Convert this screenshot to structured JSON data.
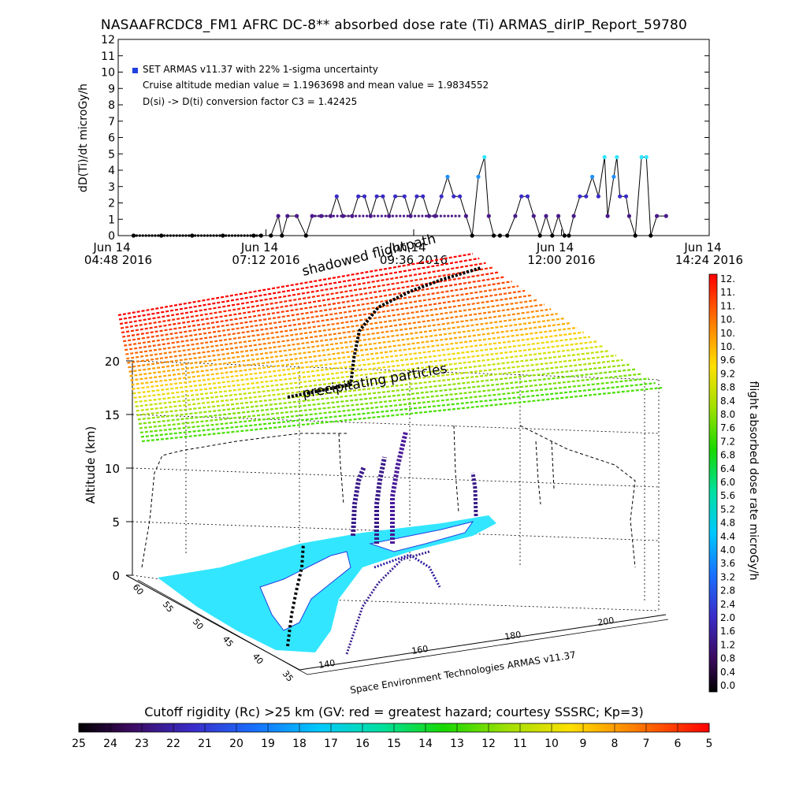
{
  "title": "NASAAFRCDC8_FM1 AFRC DC-8** absorbed dose rate (Ti) ARMAS_dirIP_Report_59780",
  "chart_data": [
    {
      "type": "line",
      "ylabel": "dD(Ti)/dt microGy/h",
      "ylim": [
        0,
        12
      ],
      "y_ticks": [
        "0",
        "1",
        "2",
        "3",
        "4",
        "5",
        "6",
        "7",
        "8",
        "9",
        "10",
        "11",
        "12"
      ],
      "x_ticks": [
        {
          "line1": "Jun 14",
          "line2": "04:48 2016"
        },
        {
          "line1": "Jun 14",
          "line2": "07:12 2016"
        },
        {
          "line1": "Jun 14",
          "line2": "09:36 2016"
        },
        {
          "line1": "Jun 14",
          "line2": "12:00 2016"
        },
        {
          "line1": "Jun 14",
          "line2": "14:24 2016"
        }
      ],
      "xlim_hours": [
        4.8,
        14.4
      ],
      "annotations": [
        "SET ARMAS v11.37 with 22% 1-sigma uncertainty",
        "Cruise altitude median value = 1.1963698 and mean value = 1.9834552",
        "D(si) -> D(ti) conversion factor C3 = 1.42425"
      ],
      "series": [
        {
          "marker_color": "#2a1b9e",
          "points": [
            [
              5.05,
              0
            ],
            [
              5.5,
              0
            ],
            [
              6.0,
              0
            ],
            [
              6.5,
              0
            ],
            [
              7.0,
              0
            ],
            [
              7.12,
              0
            ],
            [
              7.28,
              0
            ],
            [
              7.4,
              1.2
            ],
            [
              7.46,
              0
            ],
            [
              7.55,
              1.2
            ],
            [
              7.7,
              1.2
            ],
            [
              7.85,
              0
            ],
            [
              7.95,
              1.2
            ],
            [
              8.1,
              1.2
            ],
            [
              8.25,
              1.2
            ],
            [
              8.35,
              2.4
            ],
            [
              8.45,
              1.2
            ],
            [
              8.6,
              1.2
            ],
            [
              8.7,
              2.4
            ],
            [
              8.8,
              2.4
            ],
            [
              8.9,
              1.2
            ],
            [
              9.0,
              2.4
            ],
            [
              9.1,
              2.4
            ],
            [
              9.2,
              1.2
            ],
            [
              9.3,
              2.4
            ],
            [
              9.45,
              2.4
            ],
            [
              9.55,
              1.2
            ],
            [
              9.65,
              2.4
            ],
            [
              9.75,
              2.4
            ],
            [
              9.85,
              1.2
            ],
            [
              9.95,
              1.2
            ],
            [
              10.05,
              2.4
            ],
            [
              10.15,
              3.6
            ],
            [
              10.25,
              2.4
            ],
            [
              10.35,
              2.4
            ],
            [
              10.45,
              1.2
            ],
            [
              10.55,
              0
            ],
            [
              10.65,
              3.6
            ],
            [
              10.75,
              4.8
            ],
            [
              10.82,
              1.2
            ],
            [
              10.9,
              0
            ],
            [
              11.0,
              0
            ],
            [
              11.12,
              0
            ],
            [
              11.25,
              1.2
            ],
            [
              11.35,
              2.4
            ],
            [
              11.45,
              2.4
            ],
            [
              11.55,
              1.2
            ],
            [
              11.65,
              0
            ],
            [
              11.75,
              1.2
            ],
            [
              11.85,
              0
            ],
            [
              11.95,
              1.2
            ],
            [
              12.05,
              0
            ],
            [
              12.12,
              0
            ],
            [
              12.2,
              1.2
            ],
            [
              12.3,
              2.4
            ],
            [
              12.4,
              2.4
            ],
            [
              12.5,
              3.6
            ],
            [
              12.6,
              2.4
            ],
            [
              12.7,
              4.8
            ],
            [
              12.75,
              1.2
            ],
            [
              12.85,
              3.6
            ],
            [
              12.9,
              4.8
            ],
            [
              12.95,
              2.4
            ],
            [
              13.05,
              2.4
            ],
            [
              13.1,
              1.2
            ],
            [
              13.2,
              0
            ],
            [
              13.3,
              4.8
            ],
            [
              13.38,
              4.8
            ],
            [
              13.45,
              0
            ],
            [
              13.55,
              1.2
            ],
            [
              13.7,
              1.2
            ]
          ]
        }
      ]
    },
    {
      "type": "scatter",
      "zlabel": "Altitude (km)",
      "z_ticks": [
        "0",
        "5",
        "10",
        "15",
        "20"
      ],
      "lat_ticks": [
        "60",
        "55",
        "50",
        "45",
        "40",
        "35"
      ],
      "lon_ticks": [
        "140",
        "160",
        "180",
        "200"
      ],
      "labels": [
        "shadowed flightpath",
        "precipitating particles"
      ],
      "credit": "Space Environment Technologies ARMAS v11.37",
      "colorbar_label": "flight absorbed dose rate microGy/h",
      "colorbar_ticks": [
        "12.",
        "11.",
        "11.",
        "10.",
        "10.",
        "10.",
        "9.6",
        "9.2",
        "8.8",
        "8.4",
        "8.0",
        "7.6",
        "7.2",
        "6.8",
        "6.4",
        "6.0",
        "5.6",
        "5.2",
        "4.8",
        "4.4",
        "4.0",
        "3.6",
        "3.2",
        "2.8",
        "2.4",
        "2.0",
        "1.6",
        "1.2",
        "0.8",
        "0.4",
        "0.0"
      ]
    },
    {
      "type": "heatmap",
      "title": "Cutoff rigidity (Rc) >25 km (GV: red = greatest hazard; courtesy SSSRC; Kp=3)",
      "ticks": [
        "25",
        "24",
        "23",
        "22",
        "21",
        "20",
        "19",
        "18",
        "17",
        "16",
        "15",
        "14",
        "13",
        "12",
        "11",
        "10",
        "9",
        "8",
        "7",
        "6",
        "5"
      ]
    }
  ]
}
